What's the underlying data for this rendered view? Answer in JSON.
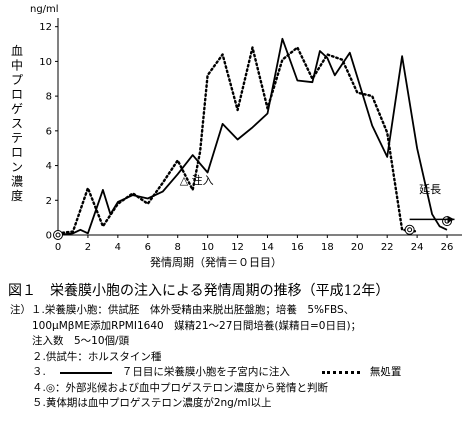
{
  "chart_data": {
    "type": "line",
    "unit_label": "ng/ml",
    "ylabel": "血中プロゲステロン濃度",
    "xlabel": "発情周期（発情＝０日目）",
    "x_ticks": [
      "0",
      "2",
      "4",
      "6",
      "8",
      "10",
      "12",
      "14",
      "16",
      "18",
      "20",
      "22",
      "24",
      "26"
    ],
    "y_ticks": [
      "0",
      "2",
      "4",
      "6",
      "8",
      "10",
      "12"
    ],
    "xlim": [
      0,
      27
    ],
    "ylim": [
      0,
      12.5
    ],
    "grid": false,
    "series": [
      {
        "style": "solid",
        "points": [
          [
            0,
            0
          ],
          [
            1,
            0.1
          ],
          [
            1.5,
            0.3
          ],
          [
            2,
            0.1
          ],
          [
            3,
            2.6
          ],
          [
            3.5,
            1.2
          ],
          [
            4,
            1.9
          ],
          [
            5,
            2.3
          ],
          [
            6,
            2.1
          ],
          [
            7,
            2.5
          ],
          [
            8,
            3.5
          ],
          [
            9,
            4.6
          ],
          [
            10,
            3.6
          ],
          [
            11,
            6.4
          ],
          [
            12,
            5.5
          ],
          [
            13,
            6.2
          ],
          [
            14,
            7.0
          ],
          [
            15,
            11.3
          ],
          [
            16,
            8.9
          ],
          [
            17,
            8.8
          ],
          [
            17.5,
            10.6
          ],
          [
            18,
            10.2
          ],
          [
            18.5,
            9.2
          ],
          [
            19.5,
            10.5
          ],
          [
            20,
            9.1
          ],
          [
            21,
            6.3
          ],
          [
            22,
            4.5
          ],
          [
            23,
            10.3
          ],
          [
            24,
            5.0
          ],
          [
            25,
            1.2
          ],
          [
            25.5,
            0.5
          ],
          [
            26,
            0.3
          ]
        ]
      },
      {
        "style": "dotted",
        "points": [
          [
            0,
            0.1
          ],
          [
            1,
            0.2
          ],
          [
            2,
            2.7
          ],
          [
            3,
            0.5
          ],
          [
            4,
            1.8
          ],
          [
            5,
            2.4
          ],
          [
            6,
            1.8
          ],
          [
            7,
            3.0
          ],
          [
            8,
            4.3
          ],
          [
            9,
            2.6
          ],
          [
            9.5,
            4.8
          ],
          [
            10,
            9.2
          ],
          [
            11,
            10.4
          ],
          [
            12,
            7.2
          ],
          [
            13,
            10.8
          ],
          [
            14,
            7.3
          ],
          [
            15,
            10.1
          ],
          [
            16,
            10.8
          ],
          [
            17,
            9.0
          ],
          [
            18,
            10.4
          ],
          [
            19,
            10.1
          ],
          [
            20,
            8.2
          ],
          [
            21,
            8.0
          ],
          [
            22,
            5.9
          ],
          [
            23,
            0.3
          ],
          [
            24,
            0.2
          ]
        ]
      }
    ],
    "annotations": [
      {
        "label": "△ 注入",
        "x": 8,
        "y": 3.5
      },
      {
        "label": "延長",
        "x": 24,
        "y": 3.0
      }
    ],
    "markers": [
      {
        "symbol": "◎",
        "x": 0,
        "y": 0
      },
      {
        "symbol": "◎",
        "x": 23.5,
        "y": 0.3
      },
      {
        "symbol": "◎",
        "x": 26,
        "y": 0.8
      }
    ],
    "extension_arrow": {
      "x1": 23.5,
      "x2": 26.5,
      "y": 0.9
    }
  },
  "figure": {
    "title": "図１　栄養膜小胞の注入による発情周期の推移（平成12年）"
  },
  "notes": {
    "line1": "注）１.栄養膜小胞：供試胚　体外受精由来脱出胚盤胞；培養　5%FBS、",
    "line2": "100μMβME添加RPMI1640　媒精21～27日間培養(媒精日=0日目)；",
    "line3": "注入数　5～10個/頭",
    "line4": "２.供試牛：ホルスタイン種",
    "line5_num": "３.",
    "line5_solid": "７日目に栄養膜小胞を子宮内に注入",
    "line5_dotted": "無処置",
    "line6": "４.◎：外部兆候および血中プロゲステロン濃度から発情と判断",
    "line7": "５.黄体期は血中プロゲステロン濃度が2ng/ml以上"
  }
}
